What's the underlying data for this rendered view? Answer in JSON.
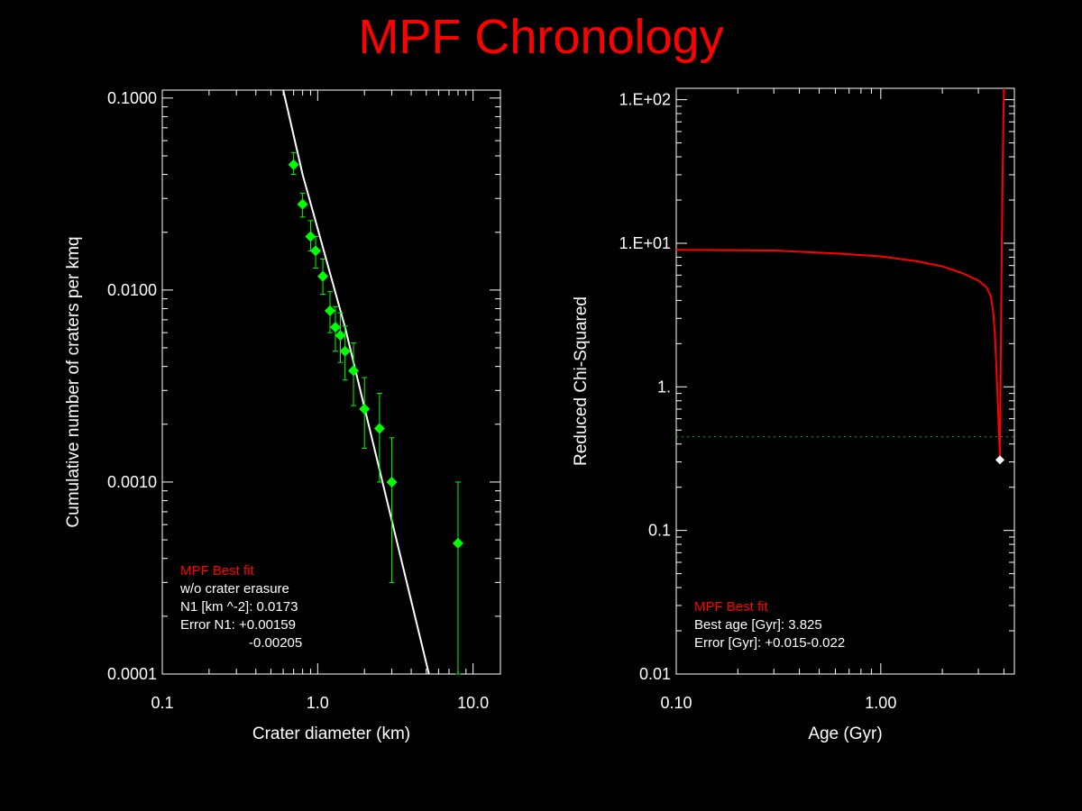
{
  "title": "MPF Chronology",
  "colors": {
    "background": "#000000",
    "title": "#ff0000",
    "axes": "#ffffff",
    "data": "#00ff00",
    "fit": "#ffffff",
    "curve": "#ff0000",
    "annotation_red": "#ff0000"
  },
  "chart_data": [
    {
      "type": "scatter",
      "xlabel": "Crater diameter (km)",
      "ylabel": "Cumulative number of craters per kmq",
      "x_scale": "log",
      "y_scale": "log",
      "xlim": [
        0.1,
        15
      ],
      "ylim": [
        0.0001,
        0.11
      ],
      "x_ticks": [
        0.1,
        1.0,
        10.0
      ],
      "x_tick_labels": [
        "0.1",
        "1.0",
        "10.0"
      ],
      "y_ticks": [
        0.0001,
        0.001,
        0.01,
        0.1
      ],
      "y_tick_labels": [
        "0.0001",
        "0.0010",
        "0.0100",
        "0.1000"
      ],
      "series": [
        {
          "kind": "points_with_errorbars",
          "color": "#00ff00",
          "points": [
            {
              "x": 0.7,
              "y": 0.045,
              "lo": 0.04,
              "hi": 0.052
            },
            {
              "x": 0.8,
              "y": 0.028,
              "lo": 0.024,
              "hi": 0.032
            },
            {
              "x": 0.9,
              "y": 0.019,
              "lo": 0.016,
              "hi": 0.023
            },
            {
              "x": 0.97,
              "y": 0.016,
              "lo": 0.013,
              "hi": 0.019
            },
            {
              "x": 1.08,
              "y": 0.0118,
              "lo": 0.0095,
              "hi": 0.0145
            },
            {
              "x": 1.2,
              "y": 0.0078,
              "lo": 0.006,
              "hi": 0.0098
            },
            {
              "x": 1.3,
              "y": 0.0064,
              "lo": 0.0048,
              "hi": 0.0082
            },
            {
              "x": 1.4,
              "y": 0.0058,
              "lo": 0.0042,
              "hi": 0.0076
            },
            {
              "x": 1.5,
              "y": 0.0048,
              "lo": 0.0034,
              "hi": 0.0065
            },
            {
              "x": 1.7,
              "y": 0.0038,
              "lo": 0.0025,
              "hi": 0.0053
            },
            {
              "x": 2.0,
              "y": 0.0024,
              "lo": 0.0015,
              "hi": 0.0035
            },
            {
              "x": 2.5,
              "y": 0.0019,
              "lo": 0.001,
              "hi": 0.0029
            },
            {
              "x": 3.0,
              "y": 0.001,
              "lo": 0.0003,
              "hi": 0.0017
            },
            {
              "x": 8.0,
              "y": 0.00048,
              "lo": 0.0001,
              "hi": 0.001
            }
          ]
        },
        {
          "kind": "fit_line",
          "color": "#ffffff",
          "points": [
            {
              "x": 0.6,
              "y": 0.11
            },
            {
              "x": 0.8,
              "y": 0.04
            },
            {
              "x": 1.5,
              "y": 0.0064
            },
            {
              "x": 5.2,
              "y": 0.0001
            }
          ]
        }
      ],
      "annotation": {
        "heading": "MPF Best fit",
        "lines": [
          "w/o crater erasure",
          "N1 [km ^-2]: 0.0173",
          "Error N1: +0.00159",
          "-0.00205"
        ]
      }
    },
    {
      "type": "line",
      "xlabel": "Age (Gyr)",
      "ylabel": "Reduced Chi-Squared",
      "x_scale": "log",
      "y_scale": "log",
      "xlim": [
        0.1,
        4.5
      ],
      "ylim": [
        0.01,
        120
      ],
      "x_ticks": [
        0.1,
        1.0
      ],
      "x_tick_labels": [
        "0.10",
        "1.00"
      ],
      "y_ticks": [
        0.01,
        0.1,
        1,
        10,
        100
      ],
      "y_tick_labels": [
        "0.01",
        "0.1",
        "1.",
        "1.E+01",
        "1.E+02"
      ],
      "series": [
        {
          "kind": "curve",
          "color": "#ff0000",
          "points": [
            {
              "x": 0.1,
              "y": 9.0
            },
            {
              "x": 0.3,
              "y": 8.9
            },
            {
              "x": 0.6,
              "y": 8.5
            },
            {
              "x": 1.0,
              "y": 8.1
            },
            {
              "x": 1.5,
              "y": 7.5
            },
            {
              "x": 2.0,
              "y": 6.9
            },
            {
              "x": 2.5,
              "y": 6.2
            },
            {
              "x": 3.0,
              "y": 5.5
            },
            {
              "x": 3.3,
              "y": 4.9
            },
            {
              "x": 3.45,
              "y": 4.3
            },
            {
              "x": 3.55,
              "y": 3.3
            },
            {
              "x": 3.62,
              "y": 2.2
            },
            {
              "x": 3.68,
              "y": 1.3
            },
            {
              "x": 3.72,
              "y": 0.9
            },
            {
              "x": 3.78,
              "y": 0.5
            },
            {
              "x": 3.825,
              "y": 0.31
            },
            {
              "x": 3.86,
              "y": 1.5
            },
            {
              "x": 3.9,
              "y": 8
            },
            {
              "x": 3.95,
              "y": 40
            },
            {
              "x": 4.0,
              "y": 120
            }
          ]
        },
        {
          "kind": "hline",
          "color": "#00aa00",
          "y": 0.45
        },
        {
          "kind": "marker",
          "color": "#ffffff",
          "x": 3.825,
          "y": 0.31
        }
      ],
      "annotation": {
        "heading": "MPF Best fit",
        "lines": [
          "Best age [Gyr]: 3.825",
          "Error [Gyr]: +0.015-0.022"
        ]
      }
    }
  ]
}
